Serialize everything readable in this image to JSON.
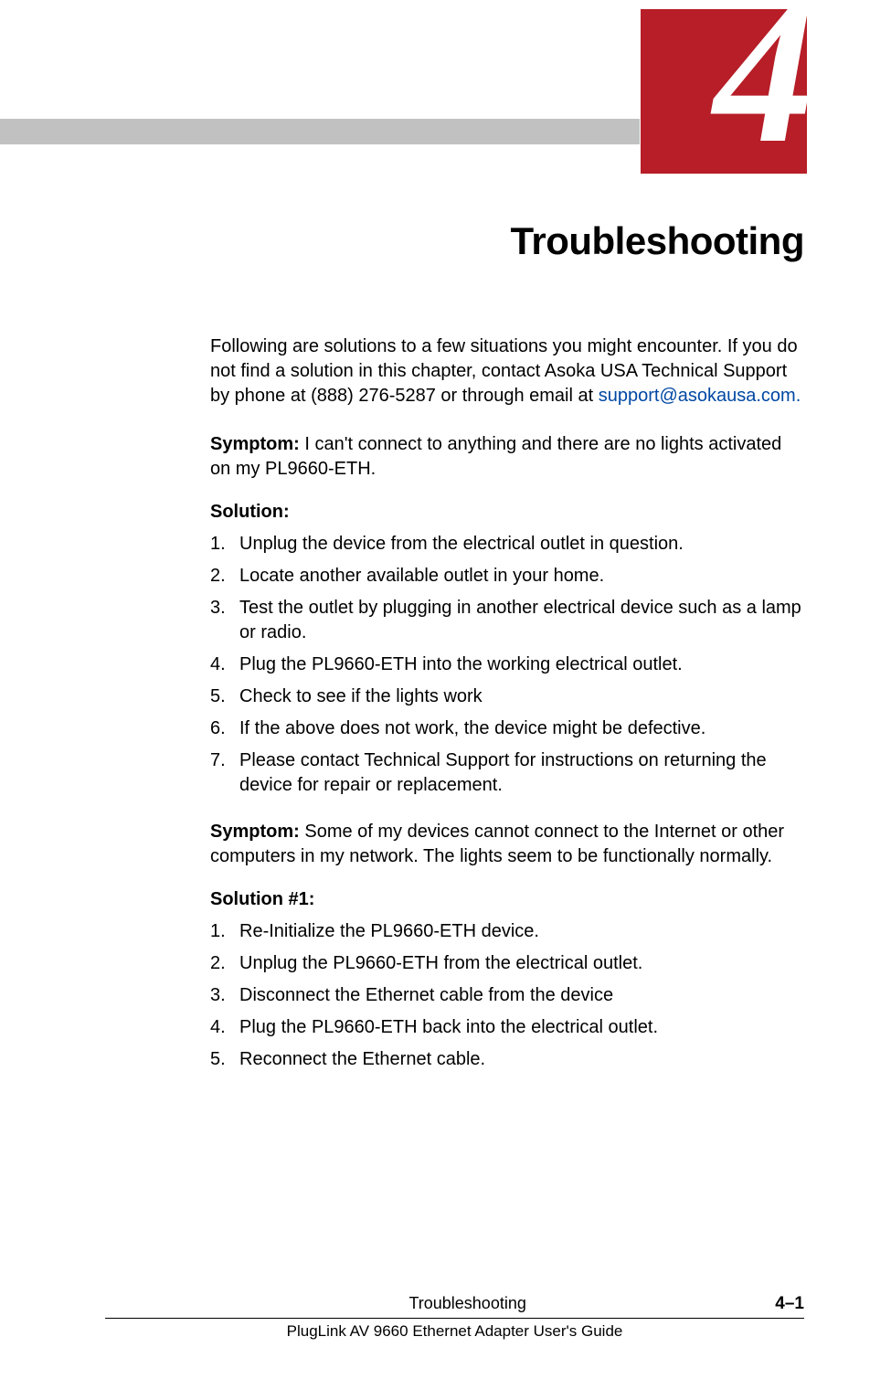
{
  "header": {
    "chapter_number": "4",
    "gray_bar_color": "#c1c1c1",
    "gray_bar_width": 700,
    "red_tab_color": "#b71e27"
  },
  "title": "Troubleshooting",
  "intro": {
    "text_before_email": "Following are solutions to a few situations you might encounter. If you do not find a solution in this chapter, contact Asoka USA Technical Support by phone at (888) 276-5287 or through email at ",
    "email": "support@asokausa.com.",
    "email_color": "#0048a3"
  },
  "sections": [
    {
      "symptom_label": "Symptom:",
      "symptom_text": " I can't connect to anything and there are no lights activated on my PL9660-ETH.",
      "solution_label": "Solution:",
      "steps": [
        "Unplug the device from the electrical outlet in question.",
        "Locate another available outlet in your home.",
        "Test the outlet by plugging in another electrical device such as a lamp or radio.",
        "Plug the PL9660-ETH into the working electrical outlet.",
        "Check to see if the lights work",
        "If the above does not work, the device might be defective.",
        "Please contact Technical Support for instructions on returning the device for repair or replacement."
      ]
    },
    {
      "symptom_label": "Symptom:",
      "symptom_text": " Some of my devices cannot connect to the Internet or other computers in my network. The lights seem to be functionally normally.",
      "solution_label": "Solution #1:",
      "steps": [
        "Re-Initialize the PL9660-ETH device.",
        "Unplug the PL9660-ETH from the electrical outlet.",
        "Disconnect the Ethernet cable from the device",
        "Plug the PL9660-ETH back into the electrical outlet.",
        "Reconnect the Ethernet cable."
      ]
    }
  ],
  "footer": {
    "section_name": "Troubleshooting",
    "page_number": "4–1",
    "guide_name": "PlugLink AV 9660 Ethernet Adapter User's Guide"
  }
}
